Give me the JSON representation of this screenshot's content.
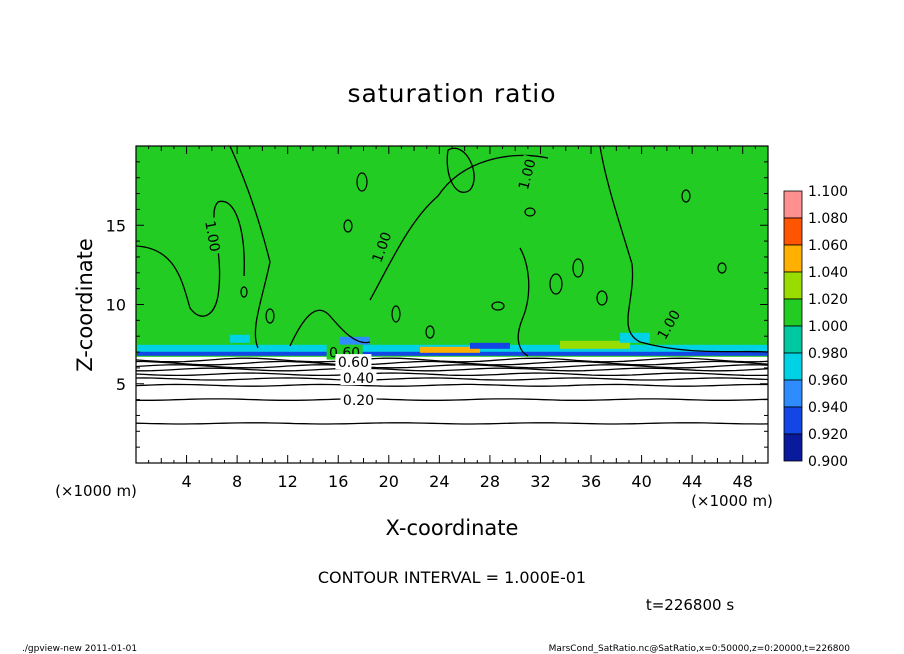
{
  "chart_data": {
    "type": "heatmap",
    "title": "saturation ratio",
    "xlabel": "X-coordinate",
    "ylabel": "Z-coordinate",
    "x_unit": "(×1000 m)",
    "y_unit": "(×1000 m)",
    "xlim": [
      0,
      50
    ],
    "ylim": [
      0,
      20
    ],
    "xticks": [
      4,
      8,
      12,
      16,
      20,
      24,
      28,
      32,
      36,
      40,
      44,
      48
    ],
    "yticks": [
      5,
      10,
      15
    ],
    "colorbar": {
      "levels": [
        0.9,
        0.92,
        0.94,
        0.96,
        0.98,
        1.0,
        1.02,
        1.04,
        1.06,
        1.08,
        1.1
      ],
      "labels": [
        "0.900",
        "0.920",
        "0.940",
        "0.960",
        "0.980",
        "1.000",
        "1.020",
        "1.040",
        "1.060",
        "1.080",
        "1.100"
      ],
      "colors": [
        "#6a0dad",
        "#0a1a9c",
        "#1446e6",
        "#2f8cff",
        "#00d2e6",
        "#00c8a0",
        "#22cc22",
        "#99dd00",
        "#ffb000",
        "#ff5500",
        "#ff9090"
      ]
    },
    "field_color": "#22cc22",
    "low_region_color": "#ffffff",
    "cloud_base_km": 6.7,
    "contour_interval": 0.1,
    "contour_lines_km": [
      2.5,
      4.0,
      4.9,
      5.3,
      5.6,
      5.9,
      6.1,
      6.3,
      6.5
    ],
    "contour_labels": [
      {
        "text": "1.00",
        "x": 6.0,
        "z": 14.3,
        "angle": 80
      },
      {
        "text": "1.00",
        "x": 19.5,
        "z": 13.6,
        "angle": -70
      },
      {
        "text": "1.00",
        "x": 31.0,
        "z": 18.2,
        "angle": -75
      },
      {
        "text": "1.00",
        "x": 42.2,
        "z": 8.7,
        "angle": -60
      },
      {
        "text": "0.60",
        "x": 16.5,
        "z": 6.9,
        "angle": 0
      },
      {
        "text": "0.60",
        "x": 17.2,
        "z": 6.3,
        "angle": 0
      },
      {
        "text": "0.40",
        "x": 17.6,
        "z": 5.3,
        "angle": 0
      },
      {
        "text": "0.20",
        "x": 17.6,
        "z": 3.9,
        "angle": 0
      }
    ]
  },
  "annotations": {
    "contour_interval_text": "CONTOUR INTERVAL = 1.000E-01",
    "time_text": "t=226800 s",
    "footer_left": "./gpview-new   2011-01-01",
    "footer_right": "MarsCond_SatRatio.nc@SatRatio,x=0:50000,z=0:20000,t=226800"
  }
}
